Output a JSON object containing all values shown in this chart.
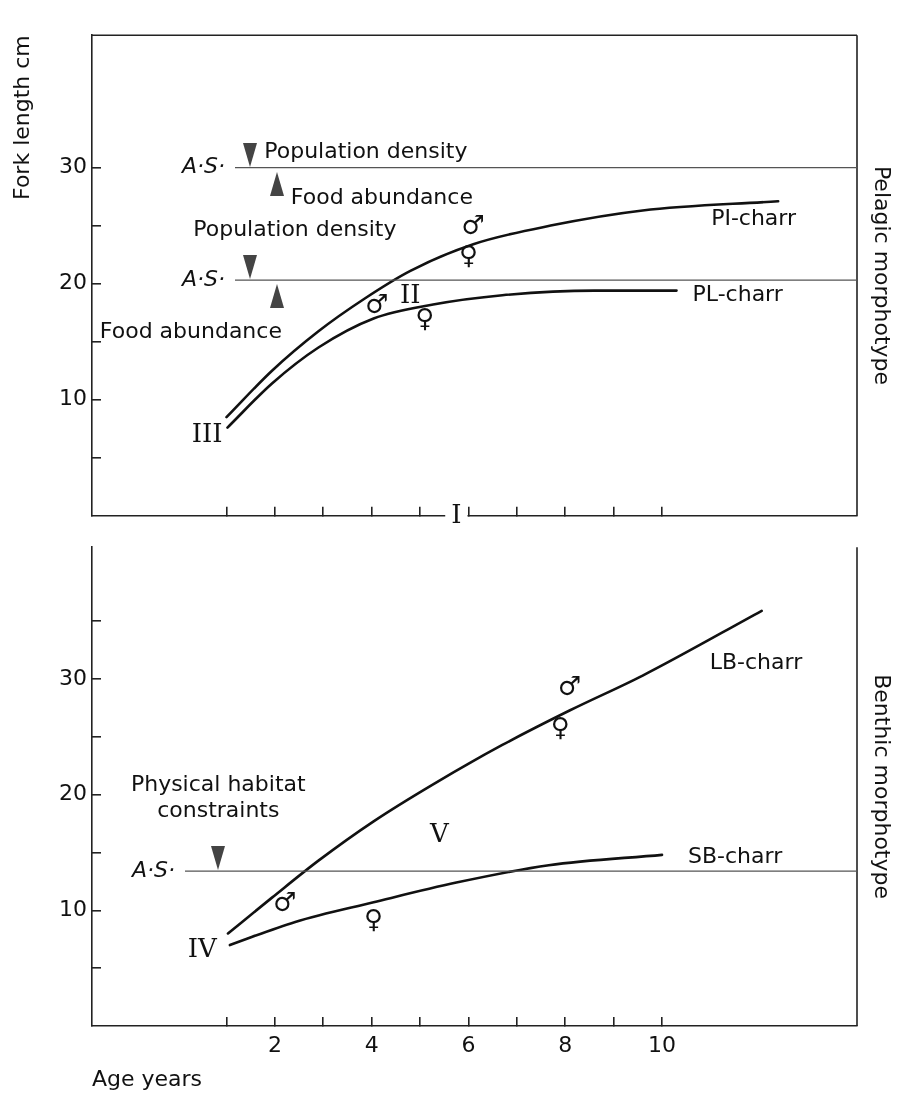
{
  "chart_data": [
    {
      "type": "line",
      "ylabel": "Fork length cm",
      "y2label": "Pelagic morphotype",
      "xlim": [
        -1.78,
        14.03
      ],
      "xticks": [
        1,
        2,
        3,
        4,
        5,
        6,
        7,
        8,
        9,
        10
      ],
      "ylim": [
        0,
        41.4
      ],
      "yticks": [
        {
          "value": 5,
          "label": null
        },
        10,
        {
          "value": 15,
          "label": null
        },
        20,
        {
          "value": 25,
          "label": null
        },
        30
      ],
      "tick_labels": "y",
      "grid": false,
      "legend": false,
      "marker": "none",
      "line_style": "solid",
      "ref_lines": [
        {
          "axis": "y",
          "value": 30,
          "label": "A·S·",
          "color": "#555555"
        },
        {
          "axis": "y",
          "value": 20.3,
          "label": "A·S·",
          "color": "#555555"
        }
      ],
      "series": [
        {
          "name": "PI-charr",
          "color": "#111111",
          "x": [
            1,
            1.94,
            2.9,
            3.85,
            4.8,
            6.1,
            7.7,
            9.6,
            12.4
          ],
          "values": [
            8.5,
            12.5,
            15.9,
            18.7,
            21.1,
            23.4,
            25,
            26.3,
            27.1
          ]
        },
        {
          "name": "PL-charr",
          "color": "#111111",
          "x": [
            1.02,
            1.94,
            2.9,
            4.04,
            5.27,
            6.7,
            8.6,
            10.3
          ],
          "values": [
            7.6,
            11.4,
            14.5,
            17,
            18.2,
            19,
            19.4,
            19.4
          ]
        }
      ],
      "annotations": [
        {
          "text": "Population density",
          "x": 1.49,
          "y": 30
        },
        {
          "text": "Food abundance",
          "x": 2.04,
          "y": 30
        },
        {
          "text": "Population density",
          "x": 1.49,
          "y": 20.3
        },
        {
          "text": "Food abundance",
          "x": 2.04,
          "y": 20.3
        },
        "III",
        "II",
        "♂",
        "♀",
        "♂",
        "♀",
        {
          "text": "I",
          "x": 5.75,
          "y": 0
        }
      ]
    },
    {
      "type": "line",
      "xlabel": "Age years",
      "y2label": "Benthic morphotype",
      "xlim": [
        -1.78,
        14.03
      ],
      "xticks": [
        {
          "value": 1,
          "label": null
        },
        2,
        {
          "value": 3,
          "label": null
        },
        4,
        {
          "value": 5,
          "label": null
        },
        6,
        {
          "value": 7,
          "label": null
        },
        8,
        {
          "value": 9,
          "label": null
        },
        10
      ],
      "ylim": [
        0,
        41.4
      ],
      "yticks": [
        {
          "value": 5,
          "label": null
        },
        10,
        {
          "value": 15,
          "label": null
        },
        20,
        {
          "value": 25,
          "label": null
        },
        30,
        {
          "value": 35,
          "label": null
        }
      ],
      "grid": false,
      "legend": false,
      "marker": "none",
      "line_style": "solid",
      "ref_lines": [
        {
          "axis": "y",
          "value": 13.4,
          "label": "A·S·",
          "color": "#555555"
        }
      ],
      "series": [
        {
          "name": "LB-charr",
          "color": "#111111",
          "x": [
            1.03,
            1.94,
            2.9,
            4.04,
            5.27,
            6.7,
            8.1,
            9.6,
            12.06
          ],
          "values": [
            8,
            11.1,
            14.3,
            17.7,
            20.9,
            24.3,
            27.3,
            30.3,
            35.9
          ]
        },
        {
          "name": "SB-charr",
          "color": "#111111",
          "x": [
            1.07,
            2.42,
            4.04,
            5.75,
            7.66,
            10
          ],
          "values": [
            7,
            9,
            10.7,
            12.4,
            13.9,
            14.8
          ]
        }
      ],
      "annotations": [
        {
          "text": "Physical habitat constraints",
          "x": 0.83,
          "y": 13.4
        },
        "IV",
        "V",
        "♂",
        "♀",
        "♂",
        "♀"
      ]
    }
  ]
}
